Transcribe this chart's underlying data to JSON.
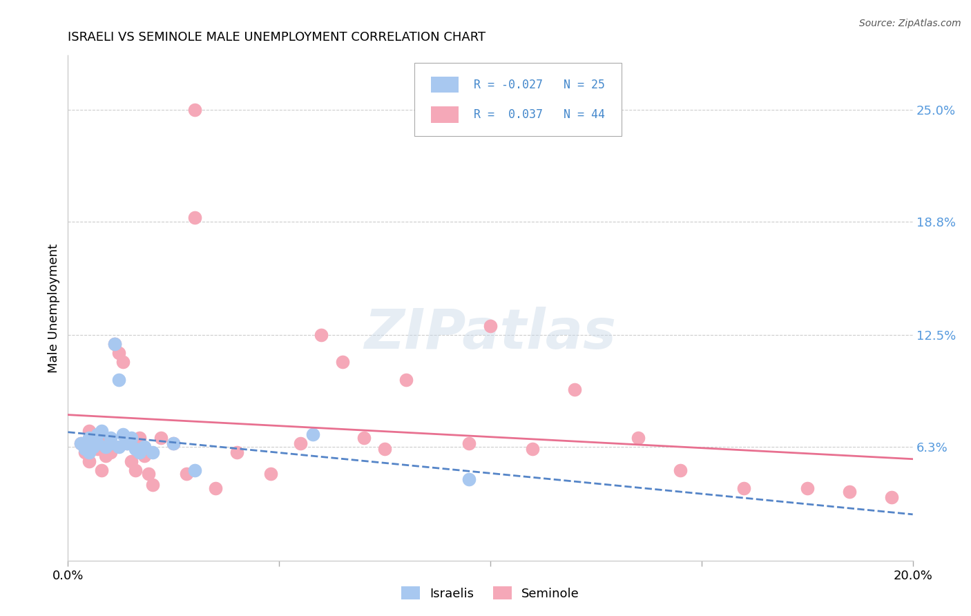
{
  "title": "ISRAELI VS SEMINOLE MALE UNEMPLOYMENT CORRELATION CHART",
  "source": "Source: ZipAtlas.com",
  "ylabel": "Male Unemployment",
  "xlim": [
    0.0,
    0.2
  ],
  "ylim": [
    0.0,
    0.28
  ],
  "ytick_labels_right": [
    "25.0%",
    "18.8%",
    "12.5%",
    "6.3%"
  ],
  "ytick_vals_right": [
    0.25,
    0.188,
    0.125,
    0.063
  ],
  "watermark": "ZIPatlas",
  "israeli_color": "#a8c8f0",
  "seminole_color": "#f5a8b8",
  "israeli_line_color": "#5585c8",
  "seminole_line_color": "#e87090",
  "israeli_R": -0.027,
  "israeli_N": 25,
  "seminole_R": 0.037,
  "seminole_N": 44,
  "israeli_scatter_x": [
    0.003,
    0.004,
    0.005,
    0.005,
    0.006,
    0.007,
    0.007,
    0.008,
    0.009,
    0.01,
    0.01,
    0.011,
    0.012,
    0.012,
    0.013,
    0.014,
    0.015,
    0.016,
    0.017,
    0.018,
    0.02,
    0.025,
    0.03,
    0.058,
    0.095
  ],
  "israeli_scatter_y": [
    0.065,
    0.062,
    0.06,
    0.068,
    0.063,
    0.065,
    0.07,
    0.072,
    0.063,
    0.068,
    0.065,
    0.12,
    0.1,
    0.063,
    0.07,
    0.065,
    0.068,
    0.062,
    0.06,
    0.063,
    0.06,
    0.065,
    0.05,
    0.07,
    0.045
  ],
  "seminole_scatter_x": [
    0.003,
    0.004,
    0.005,
    0.005,
    0.006,
    0.007,
    0.008,
    0.008,
    0.009,
    0.01,
    0.011,
    0.012,
    0.013,
    0.014,
    0.015,
    0.016,
    0.017,
    0.018,
    0.019,
    0.02,
    0.022,
    0.025,
    0.028,
    0.03,
    0.03,
    0.035,
    0.04,
    0.048,
    0.055,
    0.06,
    0.065,
    0.07,
    0.075,
    0.08,
    0.095,
    0.1,
    0.11,
    0.12,
    0.135,
    0.145,
    0.16,
    0.175,
    0.185,
    0.195
  ],
  "seminole_scatter_y": [
    0.065,
    0.06,
    0.055,
    0.072,
    0.068,
    0.062,
    0.07,
    0.05,
    0.058,
    0.06,
    0.12,
    0.115,
    0.11,
    0.065,
    0.055,
    0.05,
    0.068,
    0.058,
    0.048,
    0.042,
    0.068,
    0.065,
    0.048,
    0.25,
    0.19,
    0.04,
    0.06,
    0.048,
    0.065,
    0.125,
    0.11,
    0.068,
    0.062,
    0.1,
    0.065,
    0.13,
    0.062,
    0.095,
    0.068,
    0.05,
    0.04,
    0.04,
    0.038,
    0.035
  ]
}
